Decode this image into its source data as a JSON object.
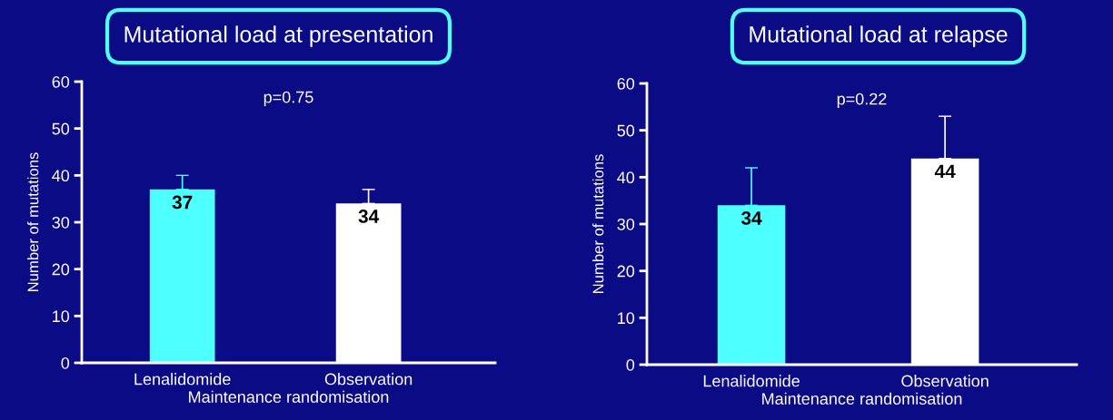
{
  "chart_data": [
    {
      "type": "bar",
      "title": "Mutational load at presentation",
      "xlabel": "Maintenance randomisation",
      "ylabel": "Number of mutations",
      "categories": [
        "Lenalidomide",
        "Observation"
      ],
      "values": [
        37,
        34
      ],
      "colors": [
        "#4dffff",
        "#ffffff"
      ],
      "errors": [
        [
          37,
          40
        ],
        [
          34,
          37
        ]
      ],
      "ylim": [
        0,
        60
      ],
      "yticks": [
        0,
        10,
        20,
        30,
        40,
        50,
        60
      ],
      "data_labels": true,
      "annotations": [
        "p=0.75"
      ]
    },
    {
      "type": "bar",
      "title": "Mutational load at relapse",
      "xlabel": "Maintenance randomisation",
      "ylabel": "Number of mutations",
      "categories": [
        "Lenalidomide",
        "Observation"
      ],
      "values": [
        34,
        44
      ],
      "colors": [
        "#4dffff",
        "#ffffff"
      ],
      "errors": [
        [
          34,
          42
        ],
        [
          44,
          53
        ]
      ],
      "ylim": [
        0,
        60
      ],
      "yticks": [
        0,
        10,
        20,
        30,
        40,
        50,
        60
      ],
      "data_labels": true,
      "annotations": [
        "p=0.22"
      ]
    }
  ]
}
